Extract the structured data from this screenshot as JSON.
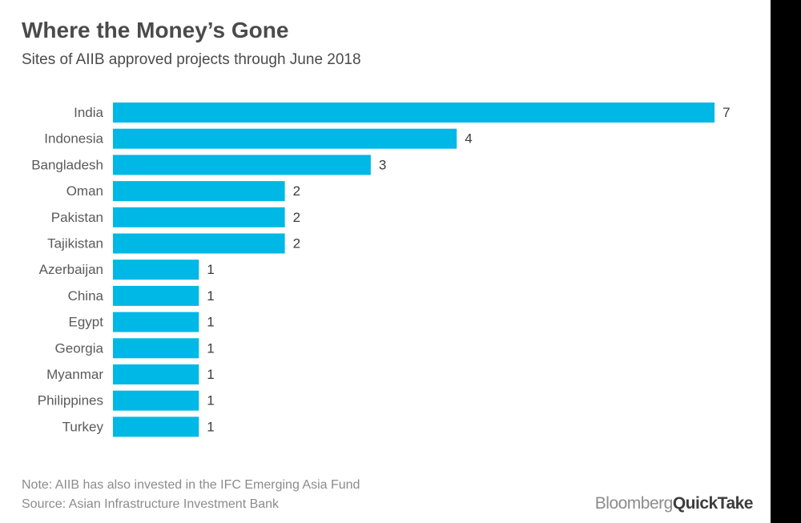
{
  "header": {
    "title": "Where the Money’s Gone",
    "subtitle": "Sites of AIIB approved projects through June 2018"
  },
  "footer": {
    "note": "Note: AIIB has also invested in the IFC Emerging Asia Fund",
    "source": "Source: Asian Infrastructure Investment Bank",
    "brand_part1": "Bloomberg",
    "brand_part2": "QuickTake"
  },
  "colors": {
    "bar": "#00b8e6"
  },
  "chart_data": {
    "type": "bar",
    "orientation": "horizontal",
    "categories": [
      "India",
      "Indonesia",
      "Bangladesh",
      "Oman",
      "Pakistan",
      "Tajikistan",
      "Azerbaijan",
      "China",
      "Egypt",
      "Georgia",
      "Myanmar",
      "Philippines",
      "Turkey"
    ],
    "values": [
      7,
      4,
      3,
      2,
      2,
      2,
      1,
      1,
      1,
      1,
      1,
      1,
      1
    ],
    "title": "Where the Money’s Gone",
    "subtitle": "Sites of AIIB approved projects through June 2018",
    "xlabel": "",
    "ylabel": "",
    "xlim": [
      0,
      7
    ],
    "grid": false,
    "legend": "none",
    "data_labels": true
  }
}
